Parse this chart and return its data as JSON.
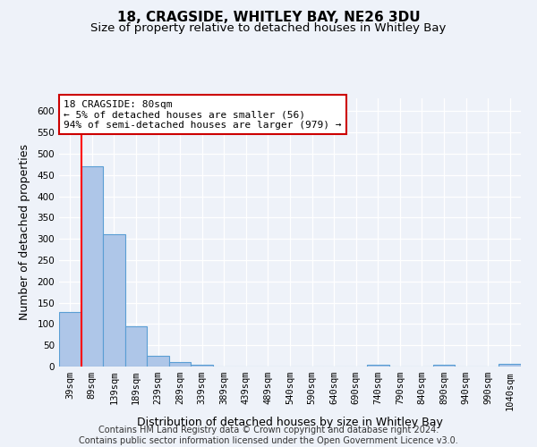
{
  "title": "18, CRAGSIDE, WHITLEY BAY, NE26 3DU",
  "subtitle": "Size of property relative to detached houses in Whitley Bay",
  "xlabel": "Distribution of detached houses by size in Whitley Bay",
  "ylabel": "Number of detached properties",
  "footer_line1": "Contains HM Land Registry data © Crown copyright and database right 2024.",
  "footer_line2": "Contains public sector information licensed under the Open Government Licence v3.0.",
  "bin_labels": [
    "39sqm",
    "89sqm",
    "139sqm",
    "189sqm",
    "239sqm",
    "289sqm",
    "339sqm",
    "389sqm",
    "439sqm",
    "489sqm",
    "540sqm",
    "590sqm",
    "640sqm",
    "690sqm",
    "740sqm",
    "790sqm",
    "840sqm",
    "890sqm",
    "940sqm",
    "990sqm",
    "1040sqm"
  ],
  "bar_values": [
    128,
    470,
    310,
    95,
    25,
    10,
    5,
    0,
    0,
    0,
    0,
    0,
    0,
    0,
    5,
    0,
    0,
    5,
    0,
    0,
    7
  ],
  "bar_color": "#aec6e8",
  "bar_edge_color": "#5a9ed4",
  "ylim": [
    0,
    630
  ],
  "yticks": [
    0,
    50,
    100,
    150,
    200,
    250,
    300,
    350,
    400,
    450,
    500,
    550,
    600
  ],
  "red_line_bin_index": 1,
  "annotation_line1": "18 CRAGSIDE: 80sqm",
  "annotation_line2": "← 5% of detached houses are smaller (56)",
  "annotation_line3": "94% of semi-detached houses are larger (979) →",
  "annotation_box_color": "#ffffff",
  "annotation_border_color": "#cc0000",
  "background_color": "#eef2f9",
  "grid_color": "#ffffff",
  "title_fontsize": 11,
  "subtitle_fontsize": 9.5,
  "axis_label_fontsize": 9,
  "tick_fontsize": 7.5,
  "annotation_fontsize": 8,
  "footer_fontsize": 7
}
